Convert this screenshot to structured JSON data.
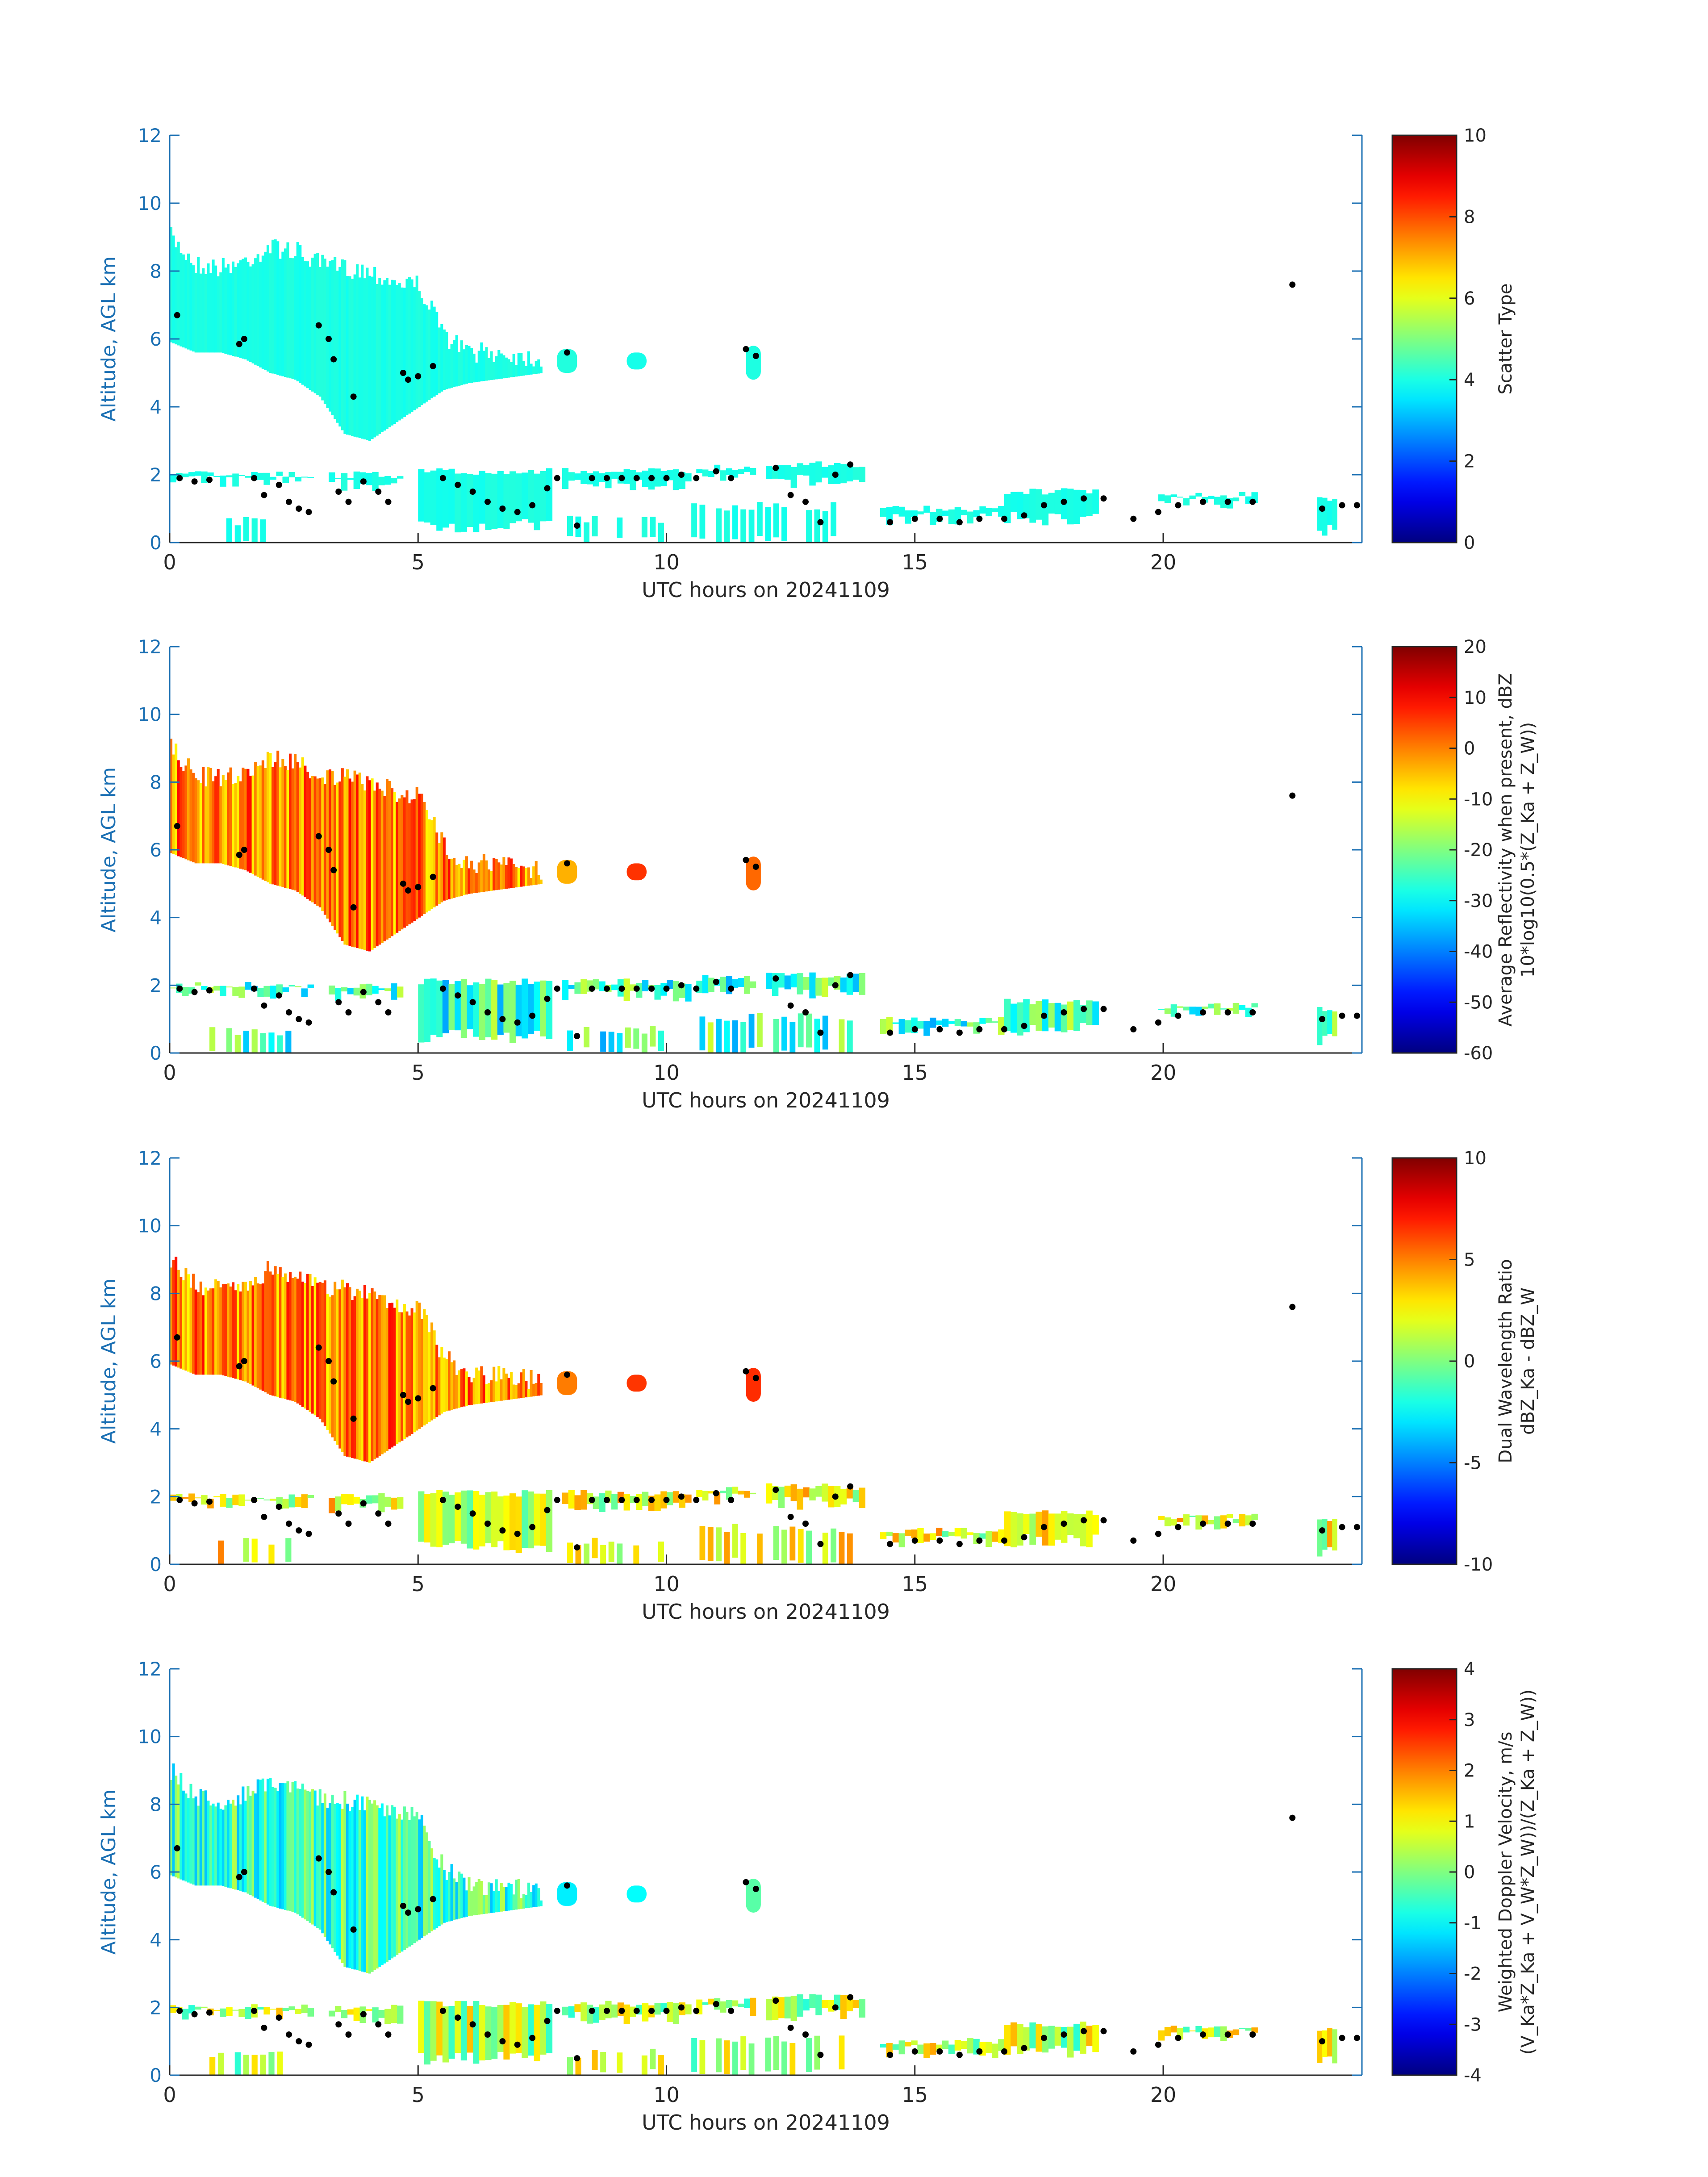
{
  "chart_data": [
    {
      "type": "heatmap",
      "title": "",
      "xlabel": "UTC hours on 20241109",
      "ylabel": "Altitude, AGL km",
      "xlim": [
        0,
        24
      ],
      "ylim": [
        0,
        12
      ],
      "xticks": [
        "0",
        "5",
        "10",
        "15",
        "20"
      ],
      "yticks": [
        "0",
        "2",
        "4",
        "6",
        "8",
        "10",
        "12"
      ],
      "colorbar": {
        "label_lines": [
          "Scatter Type"
        ],
        "clim": [
          0,
          10
        ],
        "ticks": [
          "0",
          "2",
          "4",
          "6",
          "8",
          "10"
        ],
        "colormap": "jet"
      },
      "dominant_value_upper_cloud": 4,
      "dominant_value_lower_cloud": 4
    },
    {
      "type": "heatmap",
      "title": "",
      "xlabel": "UTC hours on 20241109",
      "ylabel": "Altitude, AGL km",
      "xlim": [
        0,
        24
      ],
      "ylim": [
        0,
        12
      ],
      "xticks": [
        "0",
        "5",
        "10",
        "15",
        "20"
      ],
      "yticks": [
        "0",
        "2",
        "4",
        "6",
        "8",
        "10",
        "12"
      ],
      "colorbar": {
        "label_lines": [
          "Average Reflectivity when present, dBZ",
          "10*log10(0.5*(Z_Ka + Z_W))"
        ],
        "clim": [
          -60,
          20
        ],
        "ticks": [
          "-60",
          "-50",
          "-40",
          "-30",
          "-20",
          "-10",
          "0",
          "10",
          "20"
        ],
        "colormap": "jet"
      },
      "dominant_value_upper_cloud": 0,
      "dominant_value_lower_cloud": -25
    },
    {
      "type": "heatmap",
      "title": "",
      "xlabel": "UTC hours on 20241109",
      "ylabel": "Altitude, AGL km",
      "xlim": [
        0,
        24
      ],
      "ylim": [
        0,
        12
      ],
      "xticks": [
        "0",
        "5",
        "10",
        "15",
        "20"
      ],
      "yticks": [
        "0",
        "2",
        "4",
        "6",
        "8",
        "10",
        "12"
      ],
      "colorbar": {
        "label_lines": [
          "Dual Wavelength Ratio",
          "dBZ_Ka - dBZ_W"
        ],
        "clim": [
          -10,
          10
        ],
        "ticks": [
          "-10",
          "-5",
          "0",
          "5",
          "10"
        ],
        "colormap": "jet"
      },
      "dominant_value_upper_cloud": 5,
      "dominant_value_lower_cloud": 2
    },
    {
      "type": "heatmap",
      "title": "",
      "xlabel": "UTC hours on 20241109",
      "ylabel": "Altitude, AGL km",
      "xlim": [
        0,
        24
      ],
      "ylim": [
        0,
        12
      ],
      "xticks": [
        "0",
        "5",
        "10",
        "15",
        "20"
      ],
      "yticks": [
        "0",
        "2",
        "4",
        "6",
        "8",
        "10",
        "12"
      ],
      "colorbar": {
        "label_lines": [
          "Weighted Doppler Velocity, m/s",
          "(V_Ka*Z_Ka + V_W*Z_W))/(Z_Ka + Z_W))"
        ],
        "clim": [
          -4,
          4
        ],
        "ticks": [
          "-4",
          "-3",
          "-2",
          "-1",
          "0",
          "1",
          "2",
          "3",
          "4"
        ],
        "colormap": "jet"
      },
      "dominant_value_upper_cloud": -0.5,
      "dominant_value_lower_cloud": 0.5
    }
  ],
  "cloud_layers": {
    "upper_envelope": [
      [
        0,
        5.9,
        9.3
      ],
      [
        0.5,
        5.6,
        8.5
      ],
      [
        1.0,
        5.6,
        8.4
      ],
      [
        1.5,
        5.4,
        8.6
      ],
      [
        2.0,
        5.0,
        9.0
      ],
      [
        2.5,
        4.8,
        8.9
      ],
      [
        3.0,
        4.3,
        8.5
      ],
      [
        3.5,
        3.2,
        8.4
      ],
      [
        4.0,
        3.0,
        8.3
      ],
      [
        4.5,
        3.5,
        8.0
      ],
      [
        5.0,
        4.0,
        7.9
      ],
      [
        5.5,
        4.5,
        6.4
      ],
      [
        6.0,
        4.7,
        5.9
      ],
      [
        6.5,
        4.8,
        5.9
      ],
      [
        7.0,
        4.9,
        5.8
      ],
      [
        7.5,
        5.0,
        5.7
      ]
    ],
    "upper_patches": [
      [
        7.8,
        8.2,
        5.0,
        5.7
      ],
      [
        9.2,
        9.6,
        5.1,
        5.6
      ],
      [
        11.6,
        11.9,
        4.8,
        5.8
      ]
    ],
    "lower_band": [
      [
        0.0,
        2.9,
        1.6,
        2.1
      ],
      [
        3.2,
        4.7,
        1.5,
        2.1
      ],
      [
        5.0,
        7.7,
        0.3,
        2.2
      ],
      [
        7.9,
        10.5,
        1.5,
        2.2
      ],
      [
        10.6,
        11.8,
        1.7,
        2.3
      ],
      [
        12.0,
        14.0,
        1.6,
        2.4
      ],
      [
        14.3,
        16.8,
        0.5,
        1.1
      ],
      [
        16.8,
        18.7,
        0.5,
        1.6
      ],
      [
        19.9,
        21.9,
        1.0,
        1.5
      ],
      [
        23.1,
        23.5,
        0.2,
        1.4
      ]
    ],
    "near_surface_patches": [
      [
        0.8,
        2.5,
        0.1,
        0.8
      ],
      [
        8.0,
        10.0,
        0.2,
        0.8
      ],
      [
        10.5,
        13.8,
        0.2,
        1.2
      ]
    ],
    "black_dots": [
      [
        0.15,
        6.7
      ],
      [
        0.2,
        1.9
      ],
      [
        0.5,
        1.8
      ],
      [
        0.8,
        1.85
      ],
      [
        1.4,
        5.85
      ],
      [
        1.5,
        6.0
      ],
      [
        1.7,
        1.9
      ],
      [
        1.9,
        1.4
      ],
      [
        2.2,
        1.7
      ],
      [
        2.4,
        1.2
      ],
      [
        2.6,
        1.0
      ],
      [
        2.8,
        0.9
      ],
      [
        3.0,
        6.4
      ],
      [
        3.2,
        6.0
      ],
      [
        3.3,
        5.4
      ],
      [
        3.4,
        1.5
      ],
      [
        3.6,
        1.2
      ],
      [
        3.7,
        4.3
      ],
      [
        3.9,
        1.8
      ],
      [
        4.2,
        1.5
      ],
      [
        4.4,
        1.2
      ],
      [
        4.7,
        5.0
      ],
      [
        4.8,
        4.8
      ],
      [
        5.0,
        4.9
      ],
      [
        5.3,
        5.2
      ],
      [
        5.5,
        1.9
      ],
      [
        5.8,
        1.7
      ],
      [
        6.1,
        1.5
      ],
      [
        6.4,
        1.2
      ],
      [
        6.7,
        1.0
      ],
      [
        7.0,
        0.9
      ],
      [
        7.3,
        1.1
      ],
      [
        7.6,
        1.6
      ],
      [
        7.8,
        1.9
      ],
      [
        8.0,
        5.6
      ],
      [
        8.2,
        0.5
      ],
      [
        8.5,
        1.9
      ],
      [
        8.8,
        1.9
      ],
      [
        9.1,
        1.9
      ],
      [
        9.4,
        1.9
      ],
      [
        9.7,
        1.9
      ],
      [
        10.0,
        1.9
      ],
      [
        10.3,
        2.0
      ],
      [
        10.6,
        1.9
      ],
      [
        11.0,
        2.1
      ],
      [
        11.3,
        1.9
      ],
      [
        11.6,
        5.7
      ],
      [
        11.8,
        5.5
      ],
      [
        12.2,
        2.2
      ],
      [
        12.5,
        1.4
      ],
      [
        12.8,
        1.2
      ],
      [
        13.1,
        0.6
      ],
      [
        13.4,
        2.0
      ],
      [
        13.7,
        2.3
      ],
      [
        14.5,
        0.6
      ],
      [
        15.0,
        0.7
      ],
      [
        15.5,
        0.7
      ],
      [
        15.9,
        0.6
      ],
      [
        16.3,
        0.7
      ],
      [
        16.8,
        0.7
      ],
      [
        17.2,
        0.8
      ],
      [
        17.6,
        1.1
      ],
      [
        18.0,
        1.2
      ],
      [
        18.4,
        1.3
      ],
      [
        18.8,
        1.3
      ],
      [
        19.4,
        0.7
      ],
      [
        19.9,
        0.9
      ],
      [
        20.3,
        1.1
      ],
      [
        20.8,
        1.2
      ],
      [
        21.3,
        1.2
      ],
      [
        21.8,
        1.2
      ],
      [
        22.6,
        7.6
      ],
      [
        23.2,
        1.0
      ],
      [
        23.6,
        1.1
      ],
      [
        23.9,
        1.1
      ]
    ]
  }
}
